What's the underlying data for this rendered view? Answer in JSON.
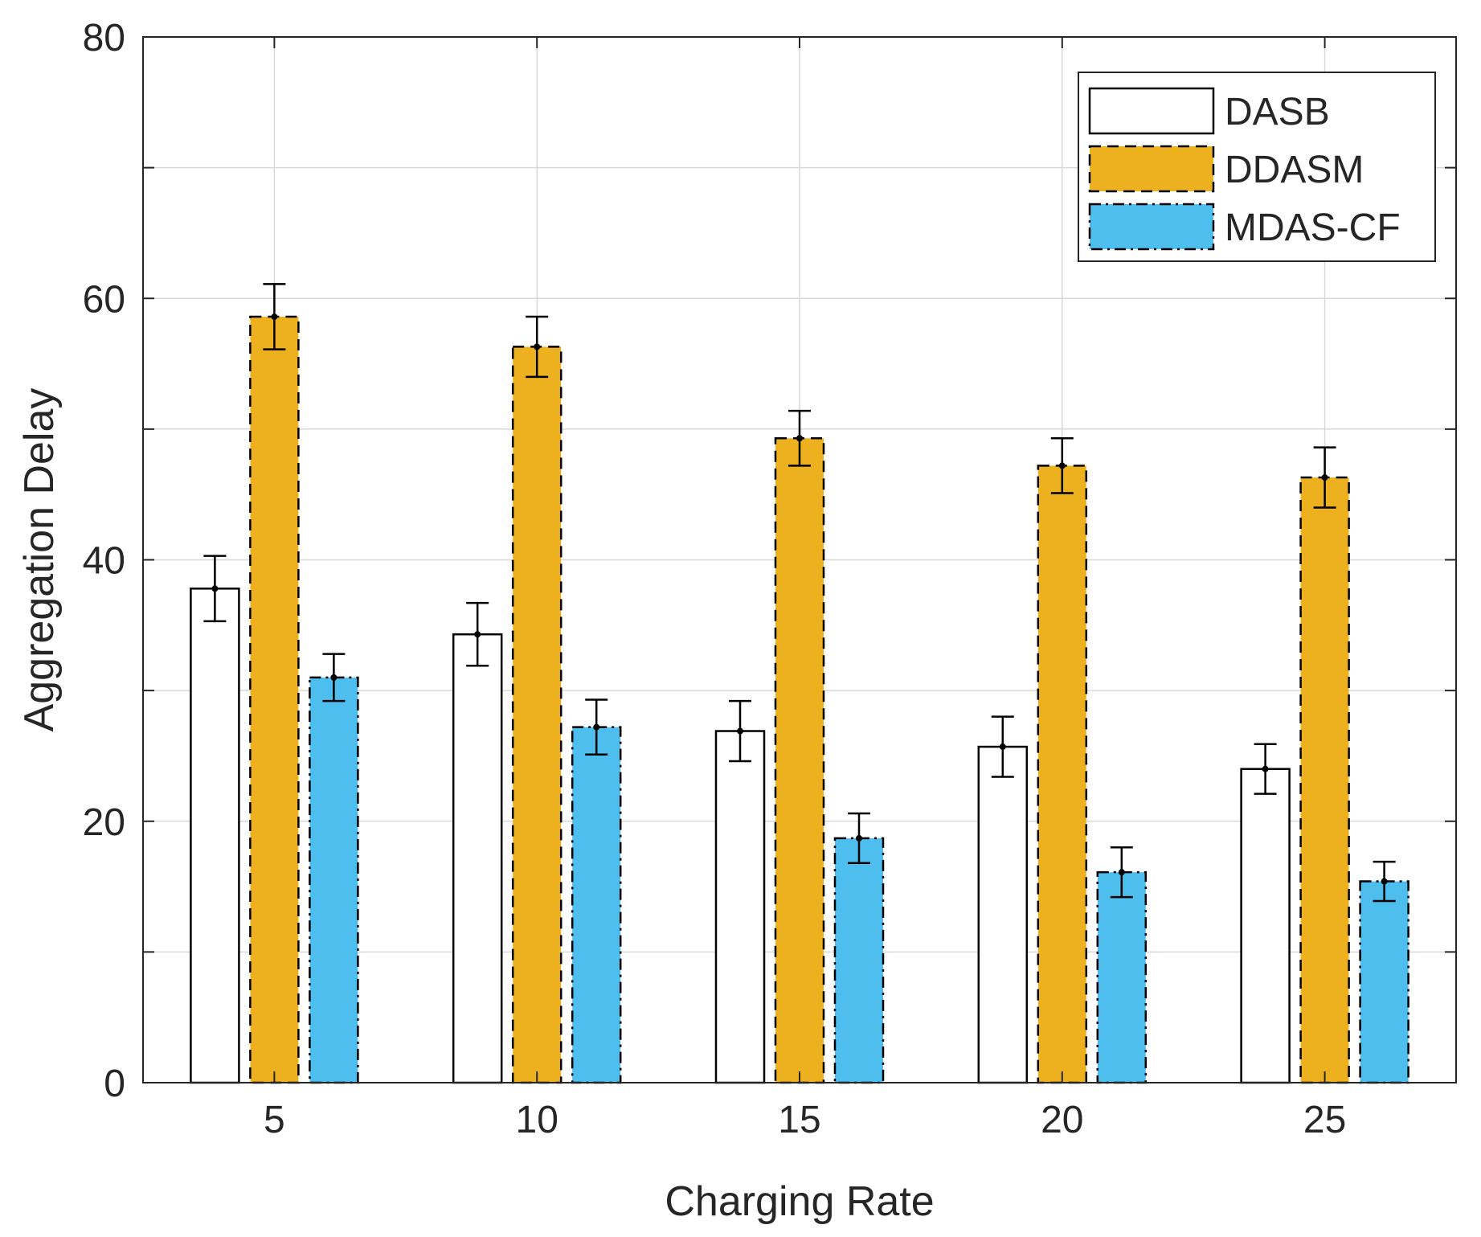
{
  "chart_data": {
    "type": "bar",
    "title": "",
    "xlabel": "Charging Rate",
    "ylabel": "Aggregation Delay",
    "categories": [
      "5",
      "10",
      "15",
      "20",
      "25"
    ],
    "ylim": [
      0,
      80
    ],
    "yticks": [
      0,
      10,
      20,
      30,
      40,
      50,
      60,
      70,
      80
    ],
    "ytick_labels": [
      "0",
      "",
      "20",
      "",
      "40",
      "",
      "60",
      "",
      "80"
    ],
    "grid": true,
    "legend_position": "top-right",
    "series": [
      {
        "name": "DASB",
        "color": "#ffffff",
        "edge": "solid",
        "values": [
          37.8,
          34.3,
          26.9,
          25.7,
          24.0
        ],
        "errors": [
          2.5,
          2.4,
          2.3,
          2.3,
          1.9
        ]
      },
      {
        "name": "DDASM",
        "color": "#edb120",
        "edge": "dashed",
        "values": [
          58.6,
          56.3,
          49.3,
          47.2,
          46.3
        ],
        "errors": [
          2.5,
          2.3,
          2.1,
          2.1,
          2.3
        ]
      },
      {
        "name": "MDAS-CF",
        "color": "#4dbeee",
        "edge": "dashdot",
        "values": [
          31.0,
          27.2,
          18.7,
          16.1,
          15.4
        ],
        "errors": [
          1.8,
          2.1,
          1.9,
          1.9,
          1.5
        ]
      }
    ]
  }
}
